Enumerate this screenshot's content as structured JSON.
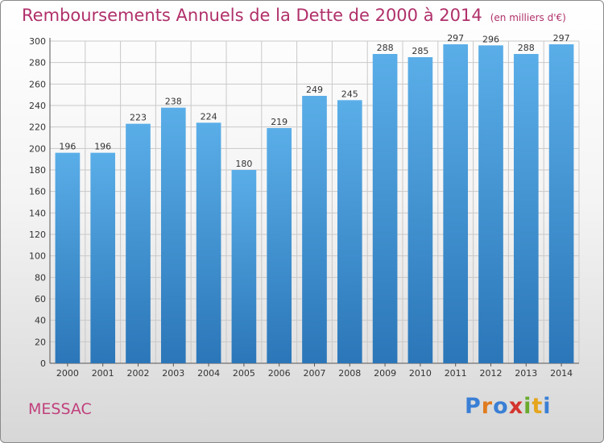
{
  "header": {
    "title": "Remboursements Annuels de la Dette de 2000 à 2014",
    "unit": "(en milliers d'€)"
  },
  "commune": "MESSAC",
  "logo": {
    "text": "Proxiti",
    "letters": [
      "P",
      "r",
      "o",
      "x",
      "i",
      "t",
      "i"
    ],
    "colors": [
      "#3a7fd5",
      "#e07b1f",
      "#3a7fd5",
      "#d4342e",
      "#6aab2e",
      "#e5a51c",
      "#3a7fd5"
    ]
  },
  "chart_data": {
    "type": "bar",
    "title": "Remboursements Annuels de la Dette de 2000 à 2014",
    "xlabel": "",
    "ylabel": "",
    "categories": [
      "2000",
      "2001",
      "2002",
      "2003",
      "2004",
      "2005",
      "2006",
      "2007",
      "2008",
      "2009",
      "2010",
      "2011",
      "2012",
      "2013",
      "2014"
    ],
    "values": [
      196,
      196,
      223,
      238,
      224,
      180,
      219,
      249,
      245,
      288,
      285,
      297,
      296,
      288,
      297
    ],
    "ylim": [
      0,
      300
    ],
    "yticks": [
      0,
      20,
      40,
      60,
      80,
      100,
      120,
      140,
      160,
      180,
      200,
      220,
      240,
      260,
      280,
      300
    ],
    "grid": true,
    "bar_color_top": "#5aaee8",
    "bar_color_bottom": "#2b76b8"
  }
}
